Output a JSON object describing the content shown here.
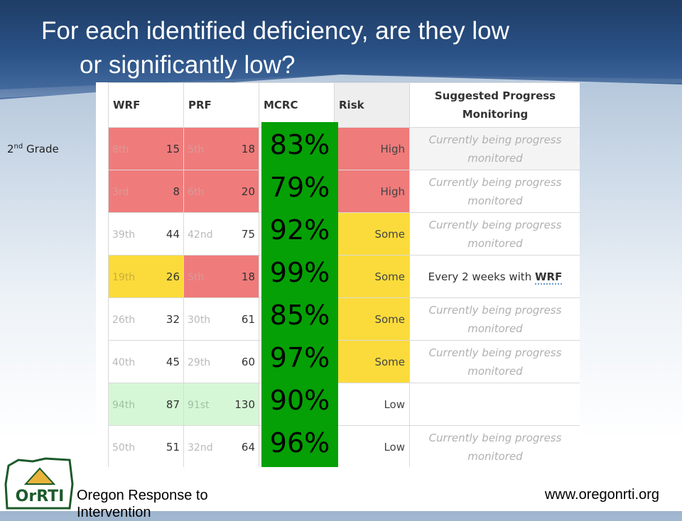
{
  "slide": {
    "title_line1": "For each identified deficiency, are they low",
    "title_line2": "or significantly low?",
    "grade_number": "2",
    "grade_suffix": "nd",
    "grade_word": "Grade"
  },
  "table": {
    "headers": {
      "wrf": "WRF",
      "prf": "PRF",
      "mcrc": "MCRC",
      "risk": "Risk",
      "spm": "Suggested Progress Monitoring"
    },
    "rows": [
      {
        "wrf_pct": "8th",
        "wrf_num": "15",
        "prf_pct": "5th",
        "prf_num": "18",
        "risk": "High",
        "spm": "Currently being progress monitored",
        "mcrc": "83%"
      },
      {
        "wrf_pct": "3rd",
        "wrf_num": "8",
        "prf_pct": "6th",
        "prf_num": "20",
        "risk": "High",
        "spm": "Currently being progress monitored",
        "mcrc": "79%"
      },
      {
        "wrf_pct": "39th",
        "wrf_num": "44",
        "prf_pct": "42nd",
        "prf_num": "75",
        "risk": "Some",
        "spm": "Currently being progress monitored",
        "mcrc": "92%"
      },
      {
        "wrf_pct": "19th",
        "wrf_num": "26",
        "prf_pct": "5th",
        "prf_num": "18",
        "risk": "Some",
        "spm_prefix": "Every 2 weeks with",
        "spm_link": "WRF",
        "mcrc": "99%"
      },
      {
        "wrf_pct": "26th",
        "wrf_num": "32",
        "prf_pct": "30th",
        "prf_num": "61",
        "risk": "Some",
        "spm": "Currently being progress monitored",
        "mcrc": "85%"
      },
      {
        "wrf_pct": "40th",
        "wrf_num": "45",
        "prf_pct": "29th",
        "prf_num": "60",
        "risk": "Some",
        "spm": "Currently being progress monitored",
        "mcrc": "97%"
      },
      {
        "wrf_pct": "94th",
        "wrf_num": "87",
        "prf_pct": "91st",
        "prf_num": "130",
        "risk": "Low",
        "spm": "",
        "mcrc": "90%"
      },
      {
        "wrf_pct": "50th",
        "wrf_num": "51",
        "prf_pct": "32nd",
        "prf_num": "64",
        "risk": "Low",
        "spm": "Currently being progress monitored",
        "mcrc": "96%"
      }
    ]
  },
  "footer": {
    "org": "Oregon Response to",
    "org_cont": "Intervention",
    "url": "www.oregonrti.org",
    "logo_text": "OrRTI"
  },
  "colors": {
    "high_risk": "#f07b7b",
    "some_risk": "#fbdb3b",
    "low_score": "#d6f7d6",
    "mcrc_highlight": "#05a005",
    "banner": "#2a5287"
  }
}
